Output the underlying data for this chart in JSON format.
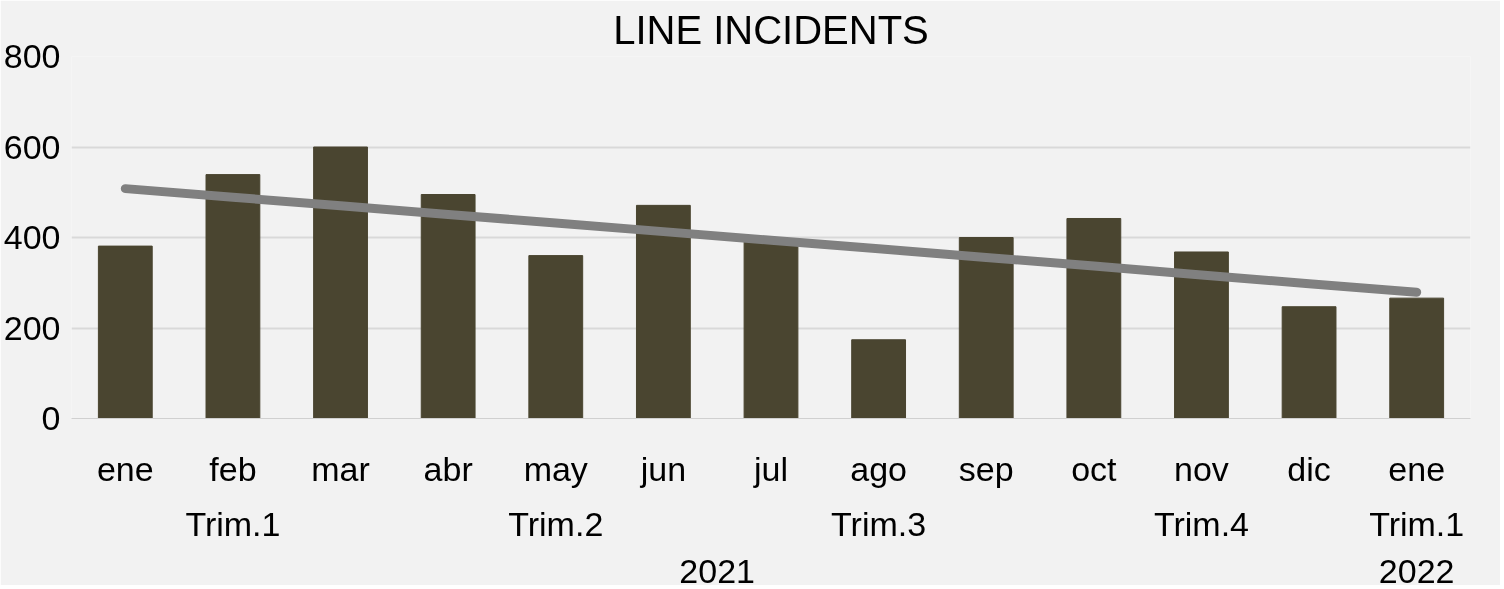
{
  "chart_data": {
    "type": "bar",
    "title": "LINE INCIDENTS",
    "categories": [
      "ene",
      "feb",
      "mar",
      "abr",
      "may",
      "jun",
      "jul",
      "ago",
      "sep",
      "oct",
      "nov",
      "dic",
      "ene"
    ],
    "series": [
      {
        "color": "#4a4530",
        "values": [
          381,
          539,
          600,
          495,
          360,
          471,
          397,
          174,
          400,
          442,
          368,
          247,
          266
        ]
      },
      {
        "type": "line",
        "color": "#808080",
        "values": [
          508,
          489,
          470,
          451,
          432,
          413,
          394,
          375,
          356,
          337,
          317,
          298,
          279
        ]
      }
    ],
    "annotations": [
      "Trim.1",
      "Trim.2",
      "Trim.3",
      "Trim.4",
      "Trim.1",
      "2021",
      "2022"
    ],
    "ylim": [
      0,
      800
    ],
    "yticks": [
      0,
      200,
      400,
      600,
      800
    ],
    "grid": "y"
  }
}
